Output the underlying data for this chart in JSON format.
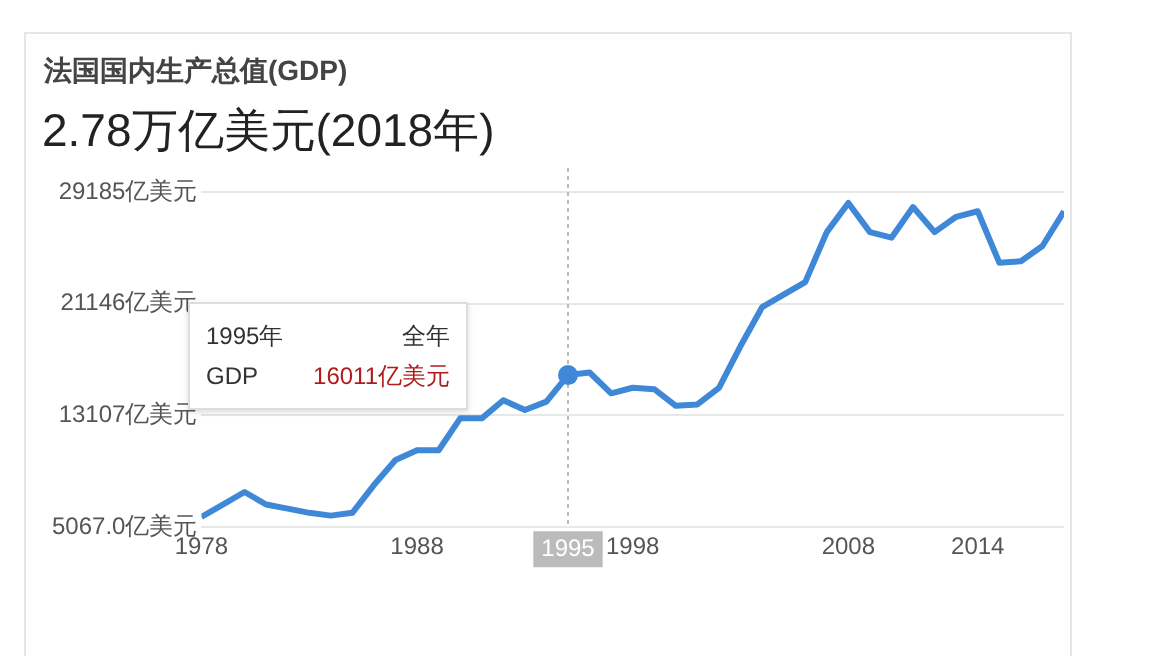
{
  "chart_data": {
    "type": "line",
    "title": "法国国内生产总值(GDP)",
    "subtitle": "2.78万亿美元(2018年)",
    "x": [
      1978,
      1980,
      1981,
      1982,
      1983,
      1984,
      1985,
      1986,
      1987,
      1988,
      1989,
      1990,
      1991,
      1992,
      1993,
      1994,
      1995,
      1996,
      1997,
      1998,
      1999,
      2000,
      2001,
      2002,
      2003,
      2004,
      2005,
      2006,
      2007,
      2008,
      2009,
      2010,
      2011,
      2012,
      2013,
      2014,
      2015,
      2016,
      2017,
      2018
    ],
    "series": [
      {
        "color": "#3f88d8",
        "values": [
          5800,
          7600,
          6700,
          6400,
          6100,
          5900,
          6100,
          8100,
          9900,
          10600,
          10600,
          12900,
          12900,
          14200,
          13500,
          14100,
          16011,
          16200,
          14700,
          15100,
          15000,
          13800,
          13900,
          15100,
          18100,
          20900,
          21800,
          22700,
          26300,
          28400,
          26300,
          25900,
          28100,
          26300,
          27400,
          27800,
          24100,
          24200,
          25300,
          27800
        ]
      }
    ],
    "xlim": [
      1978,
      2018
    ],
    "xticks": [
      1978,
      1988,
      1998,
      2008,
      2014
    ],
    "ylim": [
      5067,
      29185
    ],
    "yticks": [
      {
        "value": 5067,
        "label": "5067.0亿美元"
      },
      {
        "value": 13107,
        "label": "13107亿美元"
      },
      {
        "value": 21146,
        "label": "21146亿美元"
      },
      {
        "value": 29185,
        "label": "29185亿美元"
      }
    ],
    "grid": "y",
    "legend": false,
    "marker": "none",
    "ref_lines": [
      {
        "axis": "x",
        "value": 1995,
        "label": "1995",
        "color": "#bbbbbb",
        "line_style": "dotted"
      }
    ],
    "annotations": [
      "1995年",
      "全年",
      "GDP",
      "16011亿美元"
    ]
  }
}
